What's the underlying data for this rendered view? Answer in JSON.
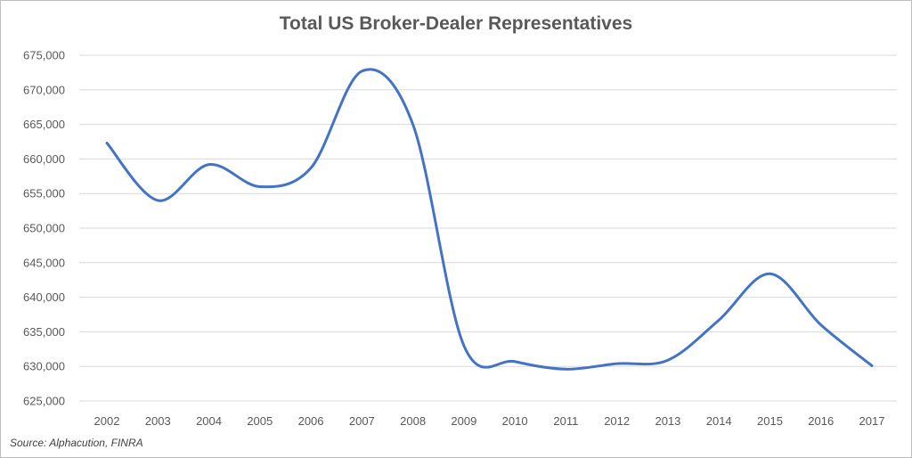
{
  "chart_data": {
    "type": "line",
    "title": "Total US Broker-Dealer Representatives",
    "xlabel": "",
    "ylabel": "",
    "x": [
      "2002",
      "2003",
      "2004",
      "2005",
      "2006",
      "2007",
      "2008",
      "2009",
      "2010",
      "2011",
      "2012",
      "2013",
      "2014",
      "2015",
      "2016",
      "2017"
    ],
    "series": [
      {
        "values": [
          662300,
          654000,
          659200,
          656000,
          658700,
          672700,
          665000,
          633000,
          630700,
          629600,
          630400,
          630900,
          636700,
          643400,
          636000,
          630100
        ]
      }
    ],
    "ylim": [
      625000,
      675000
    ],
    "y_ticks": [
      "625,000",
      "630,000",
      "635,000",
      "640,000",
      "645,000",
      "650,000",
      "655,000",
      "660,000",
      "665,000",
      "670,000",
      "675,000"
    ],
    "grid": true,
    "legend": "none",
    "line_color": "#4472c4",
    "grid_color": "#d9d9d9"
  },
  "source": "Source: Alphacution, FINRA"
}
